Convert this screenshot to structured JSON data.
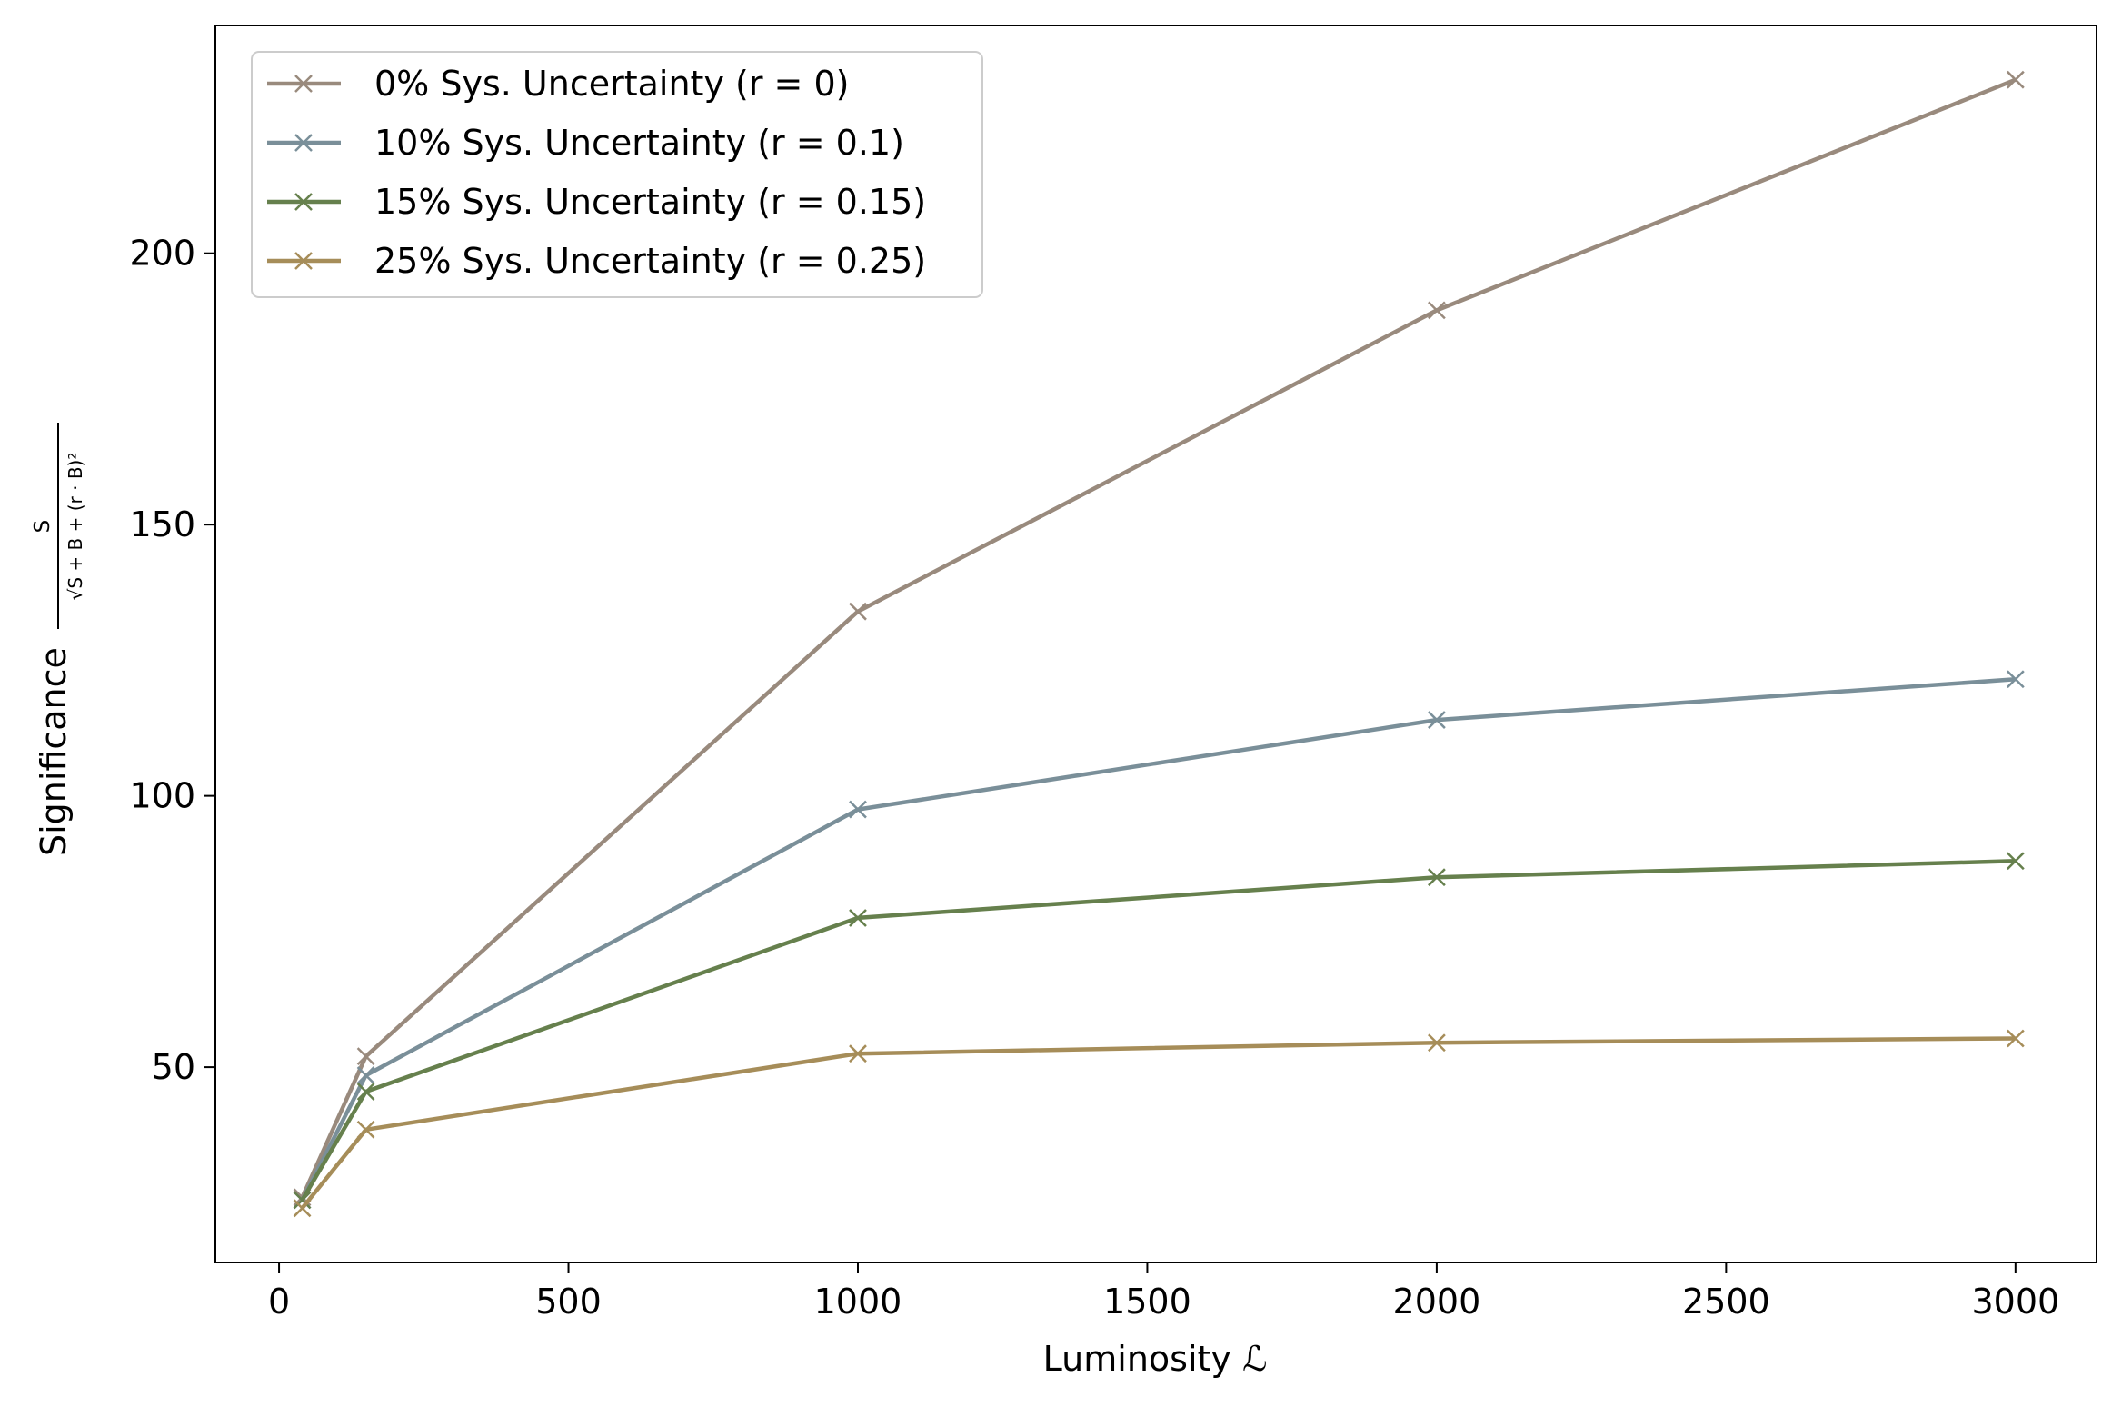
{
  "chart_data": {
    "type": "line",
    "title": "",
    "xlabel": "Luminosity ℒ",
    "ylabel": {
      "word": "Significance",
      "numerator": "S",
      "denominator": "√S + B + (r · B)²"
    },
    "xlim": [
      -110,
      3140
    ],
    "ylim": [
      14,
      242
    ],
    "x_ticks": [
      0,
      500,
      1000,
      1500,
      2000,
      2500,
      3000
    ],
    "y_ticks": [
      50,
      100,
      150,
      200
    ],
    "grid": false,
    "legend_position": "top-left",
    "marker": "x",
    "series": [
      {
        "name": "0% Sys. Uncertainty (r = 0)",
        "color": "#998a7d",
        "points": [
          [
            40,
            26
          ],
          [
            150,
            52
          ],
          [
            1000,
            134
          ],
          [
            2000,
            189.5
          ],
          [
            3000,
            232
          ]
        ]
      },
      {
        "name": "10% Sys. Uncertainty (r = 0.1)",
        "color": "#7a8f99",
        "points": [
          [
            40,
            25.5
          ],
          [
            150,
            48.5
          ],
          [
            1000,
            97.5
          ],
          [
            2000,
            114
          ],
          [
            3000,
            121.5
          ]
        ]
      },
      {
        "name": "15% Sys. Uncertainty (r = 0.15)",
        "color": "#66804d",
        "points": [
          [
            40,
            25.5
          ],
          [
            150,
            45.5
          ],
          [
            1000,
            77.5
          ],
          [
            2000,
            85
          ],
          [
            3000,
            88
          ]
        ]
      },
      {
        "name": "25% Sys. Uncertainty (r = 0.25)",
        "color": "#a68d59",
        "points": [
          [
            40,
            24
          ],
          [
            150,
            38.5
          ],
          [
            1000,
            52.5
          ],
          [
            2000,
            54.5
          ],
          [
            3000,
            55.3
          ]
        ]
      }
    ]
  }
}
